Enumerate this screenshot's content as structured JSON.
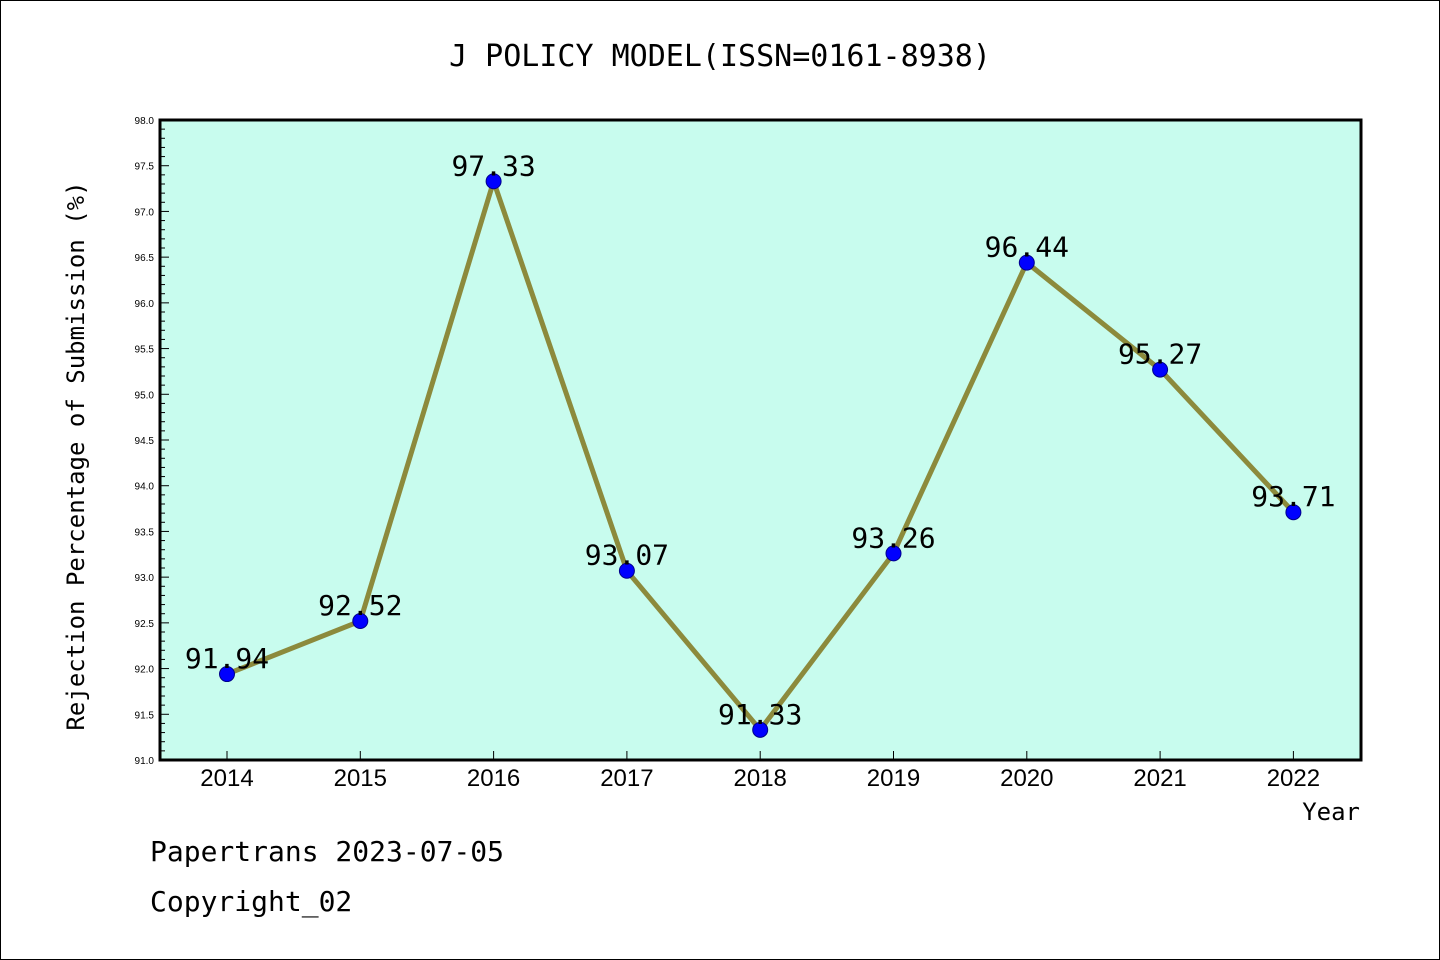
{
  "chart_data": {
    "type": "line",
    "title": "J POLICY MODEL(ISSN=0161-8938)",
    "xlabel": "Year",
    "ylabel": "Rejection Percentage of Submission (%)",
    "categories": [
      "2014",
      "2015",
      "2016",
      "2017",
      "2018",
      "2019",
      "2020",
      "2021",
      "2022"
    ],
    "values": [
      91.94,
      92.52,
      97.33,
      93.07,
      91.33,
      93.26,
      96.44,
      95.27,
      93.71
    ],
    "data_labels": [
      "91.94",
      "92.52",
      "97.33",
      "93.07",
      "91.33",
      "93.26",
      "96.44",
      "95.27",
      "93.71"
    ],
    "ylim": [
      91.0,
      98.0
    ],
    "yticks": [
      "91.0",
      "91.5",
      "92.0",
      "92.5",
      "93.0",
      "93.5",
      "94.0",
      "94.5",
      "95.0",
      "95.5",
      "96.0",
      "96.5",
      "97.0",
      "97.5",
      "98.0"
    ],
    "grid": false,
    "colors": {
      "plot_background": "#c8fcee",
      "line": "#8c8a3c",
      "marker": "#0000ff"
    }
  },
  "footer": {
    "line1": "Papertrans 2023-07-05",
    "line2": "Copyright_02"
  }
}
